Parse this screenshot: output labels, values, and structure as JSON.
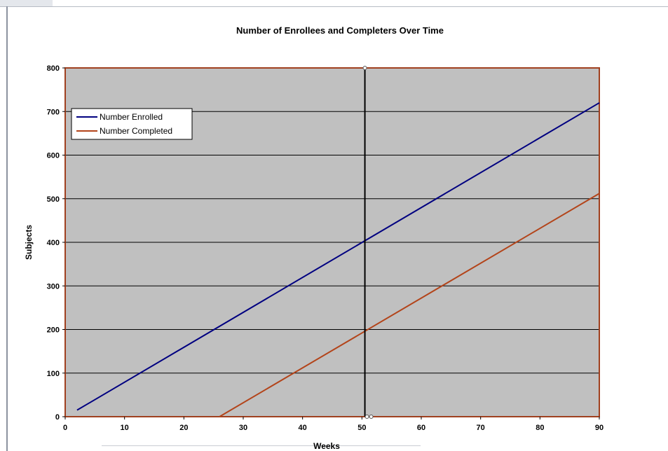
{
  "colors": {
    "plot_background": "#c0c0c0",
    "plot_border": "#a0401f",
    "gridline": "#000000",
    "number_enrolled": "#000080",
    "number_completed": "#b3441a",
    "marker_line": "#000000"
  },
  "chart_data": {
    "type": "line",
    "title": "Number of Enrollees and Completers Over Time",
    "xlabel": "Weeks",
    "ylabel": "Subjects",
    "xlim": [
      0,
      90
    ],
    "ylim": [
      0,
      800
    ],
    "xticks": [
      "0",
      "10",
      "20",
      "30",
      "40",
      "50",
      "60",
      "70",
      "80",
      "90"
    ],
    "yticks": [
      "0",
      "100",
      "200",
      "300",
      "400",
      "500",
      "600",
      "700",
      "800"
    ],
    "grid": true,
    "legend_position": "top-left",
    "series": [
      {
        "name": "Number Enrolled",
        "x": [
          2,
          90
        ],
        "y": [
          15,
          720
        ]
      },
      {
        "name": "Number Completed",
        "x": [
          26,
          90
        ],
        "y": [
          0,
          512
        ]
      }
    ],
    "vertical_marker_x": 50.5
  }
}
